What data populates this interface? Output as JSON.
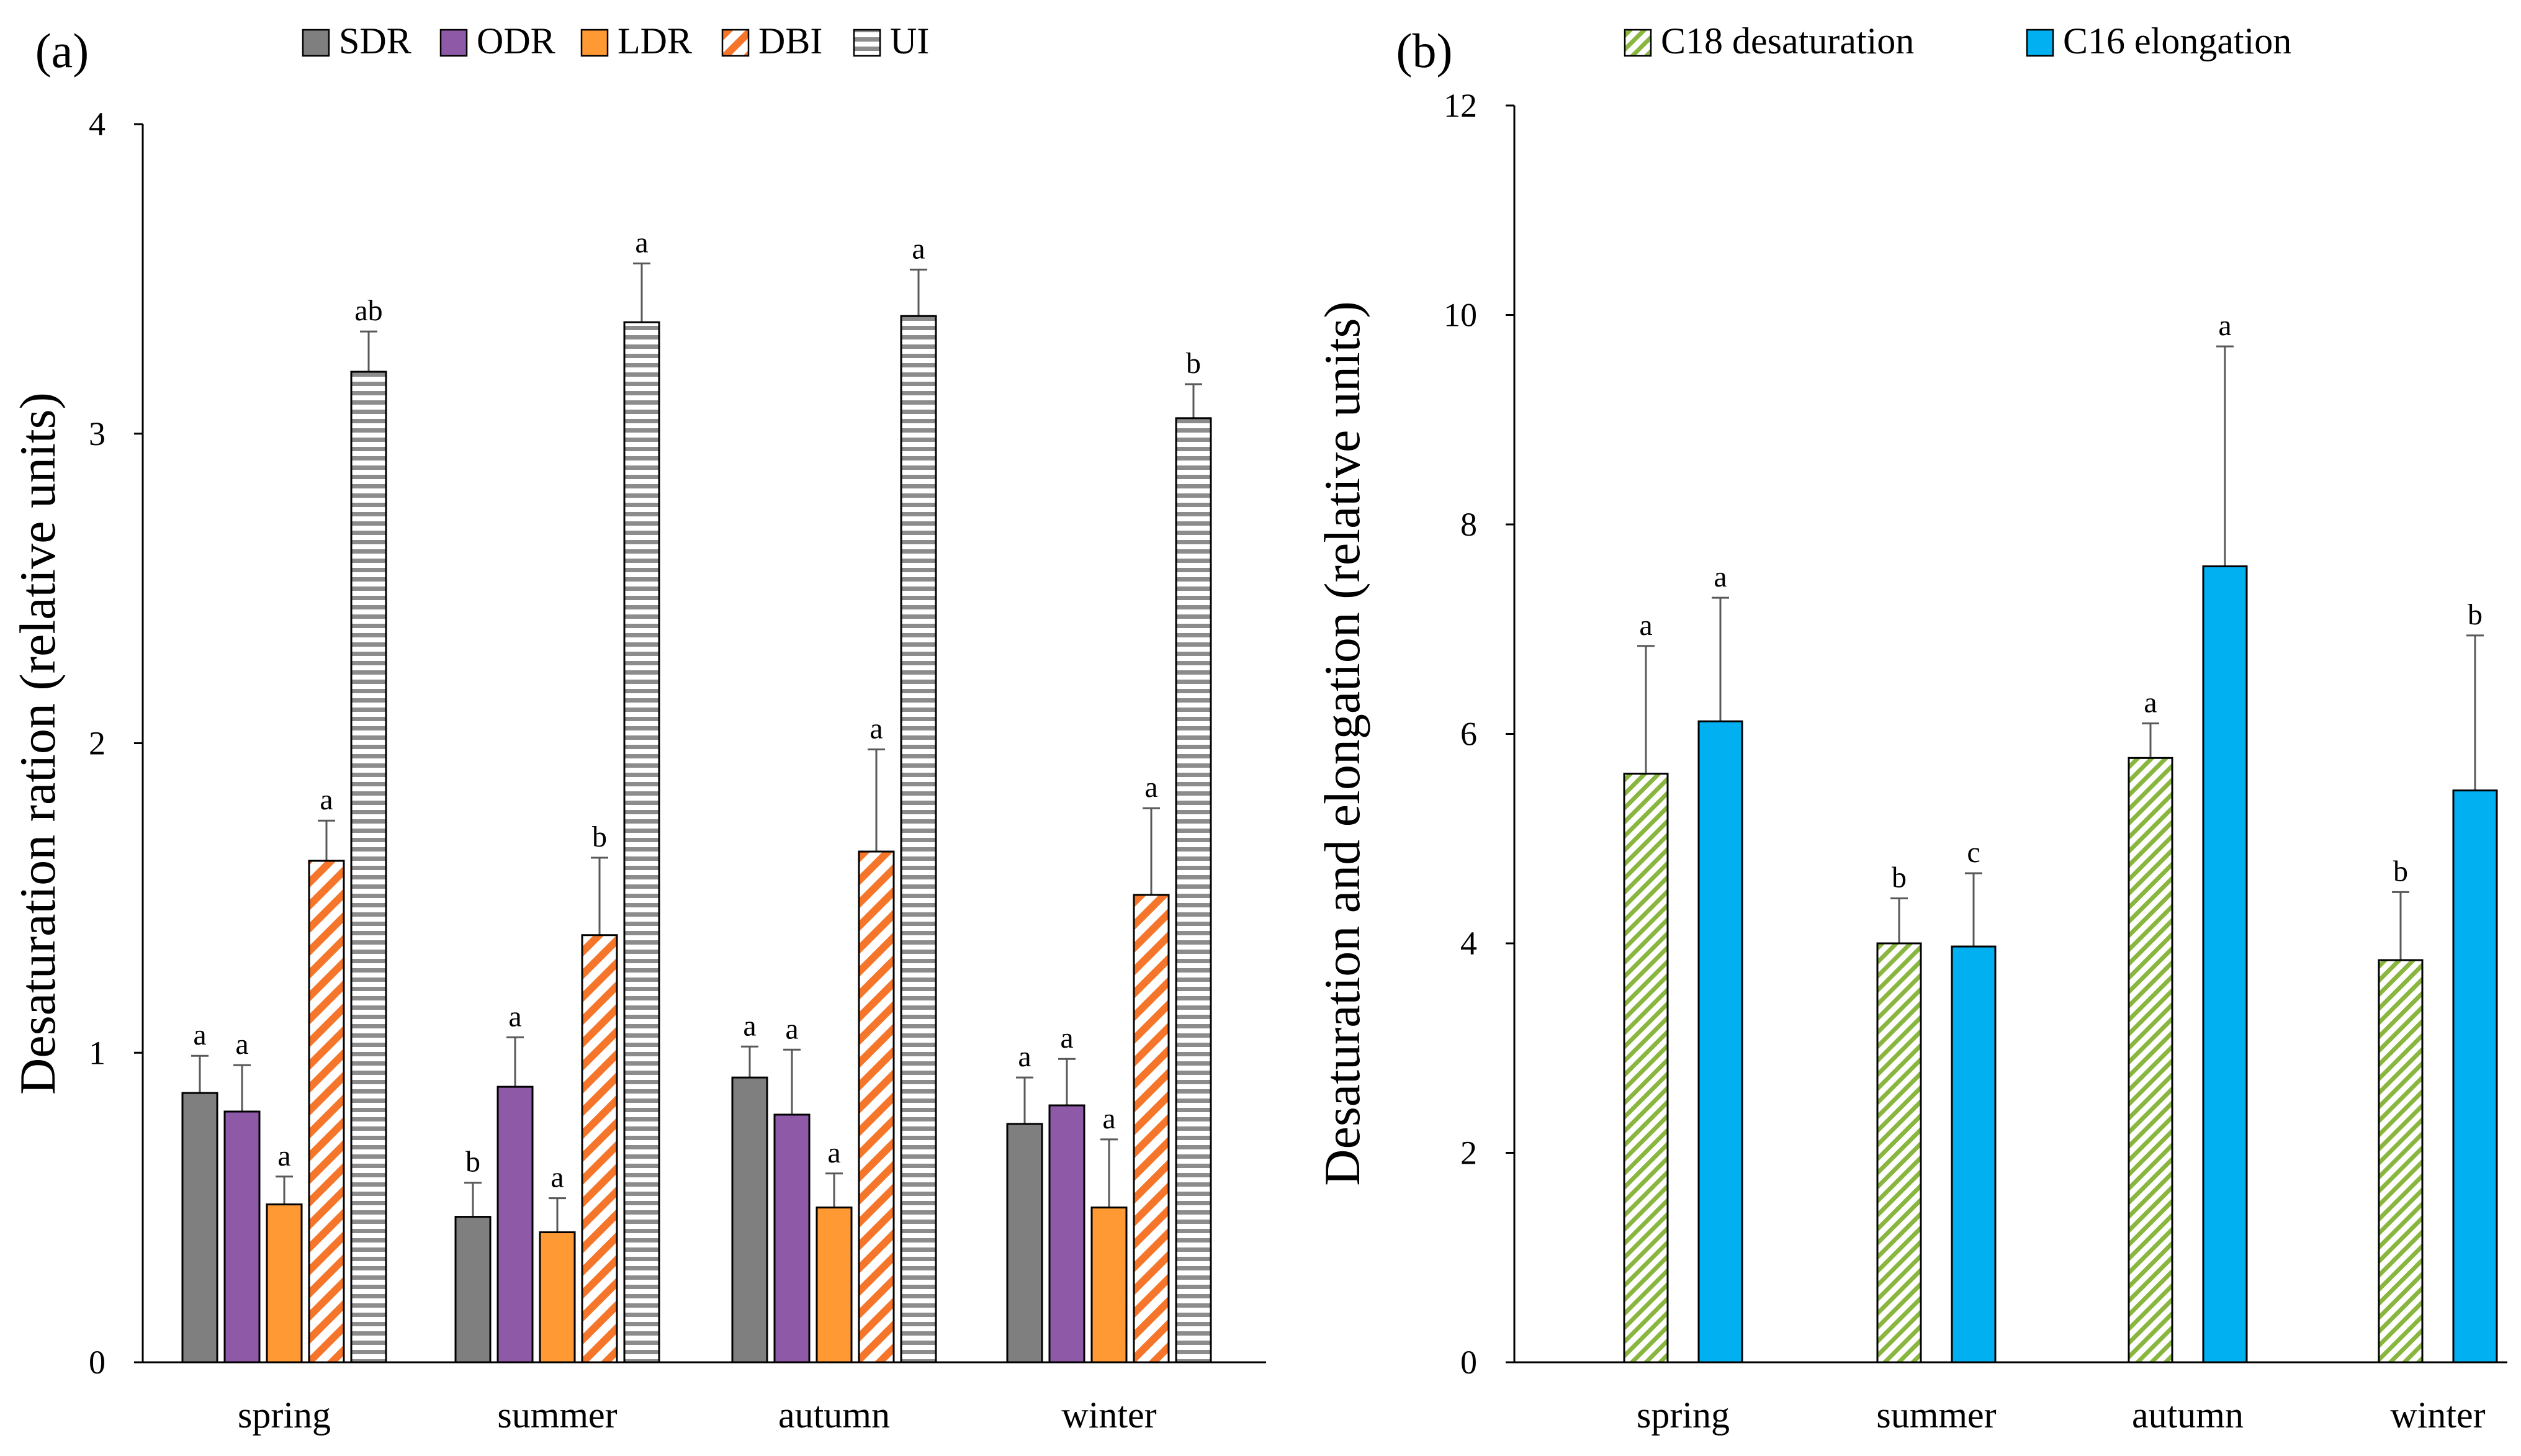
{
  "chart_data": [
    {
      "type": "bar",
      "panel_label": "(a)",
      "title": "",
      "xlabel": "",
      "ylabel": "Desaturation ration (relative units)",
      "ylim": [
        0,
        4
      ],
      "yticks": [
        "0",
        "1",
        "2",
        "3",
        "4"
      ],
      "grid": false,
      "legend_position": "top",
      "categories": [
        "spring",
        "summer",
        "autumn",
        "winter"
      ],
      "series": [
        {
          "name": "SDR",
          "pattern": "solid",
          "color": "#7f7f7f",
          "values": [
            0.87,
            0.47,
            0.92,
            0.77
          ],
          "errors": [
            0.12,
            0.11,
            0.1,
            0.15
          ],
          "letters": [
            "a",
            "b",
            "a",
            "a"
          ]
        },
        {
          "name": "ODR",
          "pattern": "solid",
          "color": "#8e5aa8",
          "values": [
            0.81,
            0.89,
            0.8,
            0.83
          ],
          "errors": [
            0.15,
            0.16,
            0.21,
            0.15
          ],
          "letters": [
            "a",
            "a",
            "a",
            "a"
          ]
        },
        {
          "name": "LDR",
          "pattern": "solid",
          "color": "#ff9933",
          "values": [
            0.51,
            0.42,
            0.5,
            0.5
          ],
          "errors": [
            0.09,
            0.11,
            0.11,
            0.22
          ],
          "letters": [
            "a",
            "a",
            "a",
            "a"
          ]
        },
        {
          "name": "DBI",
          "pattern": "diagonal",
          "color": "#f5762a",
          "values": [
            1.62,
            1.38,
            1.65,
            1.51
          ],
          "errors": [
            0.13,
            0.25,
            0.33,
            0.28
          ],
          "letters": [
            "a",
            "b",
            "a",
            "a"
          ]
        },
        {
          "name": "UI",
          "pattern": "horizontal",
          "color": "#8c8c8c",
          "values": [
            3.2,
            3.36,
            3.38,
            3.05
          ],
          "errors": [
            0.13,
            0.19,
            0.15,
            0.11
          ],
          "letters": [
            "ab",
            "a",
            "a",
            "b"
          ]
        }
      ]
    },
    {
      "type": "bar",
      "panel_label": "(b)",
      "title": "",
      "xlabel": "",
      "ylabel": "Desaturation and elongation (relative units)",
      "ylim": [
        0,
        12
      ],
      "yticks": [
        "0",
        "2",
        "4",
        "6",
        "8",
        "10",
        "12"
      ],
      "grid": false,
      "legend_position": "top",
      "categories": [
        "spring",
        "summer",
        "autumn",
        "winter"
      ],
      "series": [
        {
          "name": "C18 desaturation",
          "pattern": "diagonal-green",
          "color": "#8ab640",
          "values": [
            5.62,
            4.0,
            5.77,
            3.84
          ],
          "errors": [
            1.22,
            0.43,
            0.33,
            0.65
          ],
          "letters": [
            "a",
            "b",
            "a",
            "b"
          ]
        },
        {
          "name": "C16 elongation",
          "pattern": "solid",
          "color": "#00b0f0",
          "values": [
            6.12,
            3.97,
            7.6,
            5.46
          ],
          "errors": [
            1.18,
            0.7,
            2.1,
            1.48
          ],
          "letters": [
            "a",
            "c",
            "a",
            "b"
          ]
        }
      ]
    }
  ]
}
